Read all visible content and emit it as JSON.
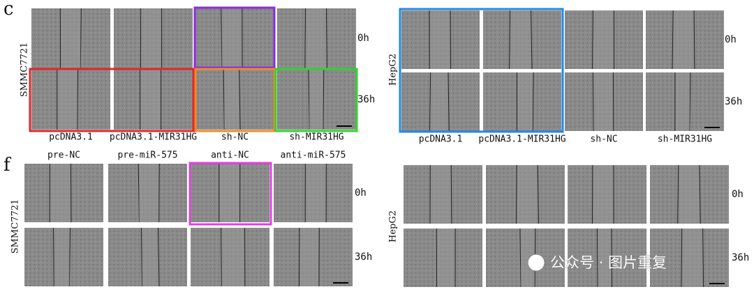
{
  "watermark": "公众号 · 图片重复",
  "panels": [
    {
      "label": "c",
      "groups": [
        {
          "cell_line": "SMMC7721",
          "columns": [
            "pcDNA3.1",
            "pcDNA3.1-MIR31HG",
            "sh-NC",
            "sh-MIR31HG"
          ],
          "times": [
            "0h",
            "36h"
          ]
        },
        {
          "cell_line": "HepG2",
          "columns": [
            "pcDNA3.1",
            "pcDNA3.1-MIR31HG",
            "sh-NC",
            "sh-MIR31HG"
          ],
          "times": [
            "0h",
            "36h"
          ]
        }
      ]
    },
    {
      "label": "f",
      "groups": [
        {
          "cell_line": "SMMC7721",
          "columns": [
            "pre-NC",
            "pre-miR-575",
            "anti-NC",
            "anti-miR-575"
          ],
          "times": [
            "0h",
            "36h"
          ]
        },
        {
          "cell_line": "HepG2",
          "times": [
            "0h",
            "36h"
          ]
        }
      ]
    }
  ]
}
